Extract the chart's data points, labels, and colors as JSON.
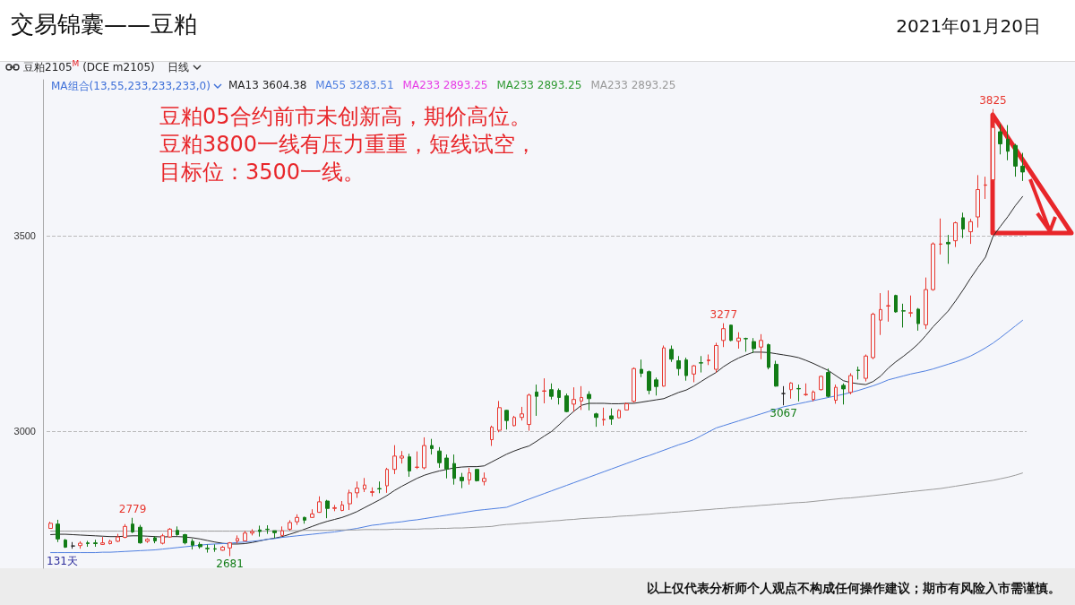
{
  "chart_data": {
    "type": "candlestick",
    "title": "交易锦囊——豆粕",
    "subtitle": "2021年01月20日",
    "categories": [
      null,
      null,
      null,
      null,
      null,
      null,
      null,
      null,
      null,
      null,
      null,
      null,
      null,
      null,
      null,
      null,
      null,
      null,
      null,
      null,
      null,
      null,
      null,
      null,
      null,
      null,
      null,
      null,
      null,
      null,
      null,
      null,
      null,
      null,
      null,
      null,
      null,
      null,
      null,
      null,
      null,
      null,
      null,
      null,
      null,
      null,
      null,
      null,
      null,
      null,
      null,
      null,
      null,
      null,
      null,
      null,
      null,
      null,
      null,
      null,
      null,
      null,
      null,
      null,
      null,
      null,
      null,
      null,
      null,
      null,
      null,
      null,
      null,
      null,
      null,
      null,
      null,
      null,
      null,
      null,
      null,
      null,
      null,
      null,
      null,
      null,
      null,
      null,
      null,
      null,
      null,
      null,
      null,
      null,
      null,
      null,
      null,
      null,
      null,
      null,
      null,
      null,
      null,
      null,
      null,
      null,
      null,
      null,
      null,
      null,
      null,
      null,
      null,
      null,
      null,
      null,
      null,
      null,
      null,
      null,
      null,
      null,
      null,
      null,
      null,
      null,
      null,
      null,
      null,
      null,
      null
    ],
    "ohlc": [
      [
        2752,
        2769,
        2751,
        2765
      ],
      [
        2763,
        2774,
        2717,
        2725
      ],
      [
        2722,
        2725,
        2702,
        2704
      ],
      [
        2707,
        2717,
        2700,
        2707
      ],
      [
        2708,
        2719,
        2700,
        2714
      ],
      [
        2715,
        2720,
        2705,
        2713
      ],
      [
        2715,
        2723,
        2705,
        2713
      ],
      [
        2711,
        2730,
        2710,
        2715
      ],
      [
        2713,
        2723,
        2711,
        2719
      ],
      [
        2719,
        2738,
        2717,
        2730
      ],
      [
        2729,
        2763,
        2727,
        2757
      ],
      [
        2763,
        2779,
        2740,
        2743
      ],
      [
        2755,
        2761,
        2713,
        2715
      ],
      [
        2719,
        2727,
        2715,
        2724
      ],
      [
        2728,
        2732,
        2714,
        2720
      ],
      [
        2714,
        2738,
        2711,
        2733
      ],
      [
        2730,
        2753,
        2728,
        2750
      ],
      [
        2747,
        2757,
        2733,
        2736
      ],
      [
        2736,
        2738,
        2711,
        2715
      ],
      [
        2719,
        2725,
        2698,
        2709
      ],
      [
        2711,
        2717,
        2700,
        2705
      ],
      [
        2701,
        2711,
        2690,
        2700
      ],
      [
        2700,
        2711,
        2692,
        2699
      ],
      [
        2696,
        2707,
        2695,
        2704
      ],
      [
        2702,
        2717,
        2681,
        2715
      ],
      [
        2720,
        2734,
        2713,
        2726
      ],
      [
        2720,
        2746,
        2719,
        2740
      ],
      [
        2740,
        2750,
        2734,
        2744
      ],
      [
        2748,
        2759,
        2731,
        2744
      ],
      [
        2750,
        2760,
        2738,
        2749
      ],
      [
        2746,
        2746,
        2727,
        2741
      ],
      [
        2734,
        2757,
        2731,
        2746
      ],
      [
        2750,
        2773,
        2746,
        2767
      ],
      [
        2769,
        2788,
        2761,
        2780
      ],
      [
        2780,
        2782,
        2764,
        2773
      ],
      [
        2780,
        2801,
        2779,
        2789
      ],
      [
        2793,
        2834,
        2792,
        2820
      ],
      [
        2822,
        2825,
        2778,
        2803
      ],
      [
        2803,
        2812,
        2796,
        2805
      ],
      [
        2798,
        2822,
        2796,
        2812
      ],
      [
        2815,
        2851,
        2799,
        2843
      ],
      [
        2843,
        2872,
        2830,
        2855
      ],
      [
        2853,
        2881,
        2845,
        2863
      ],
      [
        2844,
        2857,
        2834,
        2846
      ],
      [
        2854,
        2872,
        2842,
        2853
      ],
      [
        2861,
        2907,
        2843,
        2903
      ],
      [
        2903,
        2965,
        2891,
        2937
      ],
      [
        2932,
        2950,
        2918,
        2937
      ],
      [
        2935,
        2943,
        2884,
        2899
      ],
      [
        2908,
        2949,
        2904,
        2909
      ],
      [
        2907,
        2985,
        2903,
        2964
      ],
      [
        2964,
        2981,
        2941,
        2956
      ],
      [
        2950,
        2960,
        2907,
        2920
      ],
      [
        2932,
        2941,
        2880,
        2904
      ],
      [
        2918,
        2941,
        2864,
        2880
      ],
      [
        2883,
        2894,
        2855,
        2874
      ],
      [
        2876,
        2907,
        2864,
        2894
      ],
      [
        2903,
        2903,
        2872,
        2874
      ],
      [
        2872,
        2895,
        2862,
        2880
      ],
      [
        2979,
        3015,
        2963,
        3011
      ],
      [
        3003,
        3078,
        2998,
        3061
      ],
      [
        3054,
        3055,
        3005,
        3028
      ],
      [
        3015,
        3040,
        3013,
        3036
      ],
      [
        3036,
        3063,
        3028,
        3045
      ],
      [
        3018,
        3097,
        3002,
        3093
      ],
      [
        3101,
        3120,
        3040,
        3090
      ],
      [
        3103,
        3136,
        3072,
        3104
      ],
      [
        3107,
        3123,
        3082,
        3090
      ],
      [
        3105,
        3110,
        3069,
        3087
      ],
      [
        3091,
        3097,
        3049,
        3051
      ],
      [
        3070,
        3113,
        3051,
        3082
      ],
      [
        3078,
        3116,
        3055,
        3087
      ],
      [
        3095,
        3103,
        3054,
        3084
      ],
      [
        3045,
        3048,
        3012,
        3036
      ],
      [
        3030,
        3061,
        3015,
        3031
      ],
      [
        3040,
        3059,
        3017,
        3032
      ],
      [
        3035,
        3057,
        3034,
        3054
      ],
      [
        3055,
        3074,
        3054,
        3071
      ],
      [
        3077,
        3164,
        3074,
        3161
      ],
      [
        3159,
        3184,
        3139,
        3149
      ],
      [
        3153,
        3156,
        3095,
        3105
      ],
      [
        3132,
        3138,
        3092,
        3115
      ],
      [
        3116,
        3220,
        3115,
        3214
      ],
      [
        3210,
        3220,
        3178,
        3185
      ],
      [
        3181,
        3193,
        3143,
        3161
      ],
      [
        3183,
        3189,
        3130,
        3143
      ],
      [
        3147,
        3170,
        3126,
        3168
      ],
      [
        3176,
        3193,
        3151,
        3175
      ],
      [
        3181,
        3197,
        3170,
        3183
      ],
      [
        3159,
        3227,
        3151,
        3220
      ],
      [
        3233,
        3277,
        3216,
        3263
      ],
      [
        3272,
        3273,
        3231,
        3233
      ],
      [
        3231,
        3254,
        3212,
        3239
      ],
      [
        3238,
        3240,
        3204,
        3237
      ],
      [
        3230,
        3239,
        3201,
        3212
      ],
      [
        3216,
        3249,
        3185,
        3233
      ],
      [
        3222,
        3225,
        3159,
        3164
      ],
      [
        3172,
        3181,
        3115,
        3116
      ],
      [
        3097,
        3116,
        3067,
        3097
      ],
      [
        3107,
        3126,
        3084,
        3124
      ],
      [
        3110,
        3120,
        3077,
        3109
      ],
      [
        3094,
        3123,
        3091,
        3095
      ],
      [
        3082,
        3105,
        3077,
        3101
      ],
      [
        3107,
        3143,
        3105,
        3141
      ],
      [
        3151,
        3161,
        3087,
        3090
      ],
      [
        3080,
        3120,
        3071,
        3113
      ],
      [
        3118,
        3123,
        3069,
        3109
      ],
      [
        3100,
        3149,
        3095,
        3143
      ],
      [
        3157,
        3166,
        3133,
        3156
      ],
      [
        3136,
        3197,
        3128,
        3193
      ],
      [
        3189,
        3304,
        3185,
        3300
      ],
      [
        3285,
        3354,
        3247,
        3312
      ],
      [
        3321,
        3361,
        3281,
        3322
      ],
      [
        3348,
        3350,
        3304,
        3306
      ],
      [
        3309,
        3327,
        3266,
        3308
      ],
      [
        3303,
        3348,
        3293,
        3304
      ],
      [
        3313,
        3316,
        3258,
        3276
      ],
      [
        3273,
        3394,
        3262,
        3363
      ],
      [
        3363,
        3484,
        3360,
        3480
      ],
      [
        3479,
        3545,
        3453,
        3480
      ],
      [
        3484,
        3503,
        3429,
        3480
      ],
      [
        3488,
        3537,
        3472,
        3534
      ],
      [
        3547,
        3560,
        3495,
        3518
      ],
      [
        3511,
        3544,
        3480,
        3537
      ],
      [
        3549,
        3656,
        3522,
        3619
      ],
      [
        3630,
        3652,
        3595,
        3631
      ],
      [
        3644,
        3825,
        3640,
        3778
      ],
      [
        3767,
        3786,
        3709,
        3736
      ],
      [
        3748,
        3784,
        3694,
        3717
      ],
      [
        3732,
        3736,
        3652,
        3679
      ],
      [
        3679,
        3713,
        3641,
        3664
      ]
    ],
    "colors": [
      "#e8372f",
      "#127c16",
      "#127c16",
      "#222222",
      "#e8372f",
      "#127c16",
      "#127c16",
      "#e8372f",
      "#e8372f",
      "#e8372f",
      "#e8372f",
      "#127c16",
      "#127c16",
      "#e8372f",
      "#127c16",
      "#e8372f",
      "#e8372f",
      "#127c16",
      "#127c16",
      "#127c16",
      "#127c16",
      "#127c16",
      "#127c16",
      "#e8372f",
      "#e8372f",
      "#e8372f",
      "#e8372f",
      "#e8372f",
      "#127c16",
      "#127c16",
      "#127c16",
      "#e8372f",
      "#e8372f",
      "#e8372f",
      "#127c16",
      "#e8372f",
      "#e8372f",
      "#127c16",
      "#e8372f",
      "#e8372f",
      "#e8372f",
      "#e8372f",
      "#e8372f",
      "#e8372f",
      "#127c16",
      "#e8372f",
      "#e8372f",
      "#e8372f",
      "#127c16",
      "#e8372f",
      "#e8372f",
      "#127c16",
      "#127c16",
      "#127c16",
      "#127c16",
      "#127c16",
      "#e8372f",
      "#127c16",
      "#e8372f",
      "#e8372f",
      "#e8372f",
      "#127c16",
      "#e8372f",
      "#e8372f",
      "#e8372f",
      "#127c16",
      "#e8372f",
      "#127c16",
      "#127c16",
      "#127c16",
      "#e8372f",
      "#e8372f",
      "#127c16",
      "#127c16",
      "#e8372f",
      "#127c16",
      "#e8372f",
      "#e8372f",
      "#e8372f",
      "#127c16",
      "#127c16",
      "#127c16",
      "#e8372f",
      "#127c16",
      "#127c16",
      "#127c16",
      "#e8372f",
      "#127c16",
      "#e8372f",
      "#e8372f",
      "#e8372f",
      "#127c16",
      "#e8372f",
      "#127c16",
      "#127c16",
      "#e8372f",
      "#127c16",
      "#127c16",
      "#222222",
      "#e8372f",
      "#127c16",
      "#e8372f",
      "#e8372f",
      "#e8372f",
      "#127c16",
      "#e8372f",
      "#127c16",
      "#e8372f",
      "#127c16",
      "#e8372f",
      "#e8372f",
      "#e8372f",
      "#e8372f",
      "#127c16",
      "#127c16",
      "#e8372f",
      "#127c16",
      "#e8372f",
      "#e8372f",
      "#e8372f",
      "#127c16",
      "#e8372f",
      "#127c16",
      "#e8372f",
      "#e8372f",
      "#e8372f",
      "#e8372f",
      "#127c16",
      "#127c16",
      "#127c16",
      "#127c16"
    ],
    "series": [
      {
        "type": "line",
        "name": "MA13 3604.38",
        "color": "#262626",
        "values": [
          2736,
          2737,
          2737,
          2736,
          2735,
          2734,
          2733,
          2732,
          2731,
          2731,
          2732,
          2733,
          2733,
          2732,
          2731,
          2730,
          2731,
          2731,
          2730,
          2728,
          2725,
          2721,
          2717,
          2714,
          2712,
          2712,
          2713,
          2716,
          2720,
          2724,
          2727,
          2731,
          2737,
          2743,
          2750,
          2757,
          2764,
          2770,
          2775,
          2780,
          2787,
          2795,
          2805,
          2815,
          2825,
          2836,
          2849,
          2860,
          2870,
          2880,
          2888,
          2894,
          2899,
          2903,
          2907,
          2909,
          2910,
          2910,
          2912,
          2922,
          2932,
          2942,
          2950,
          2957,
          2963,
          2975,
          2988,
          3000,
          3017,
          3035,
          3052,
          3067,
          3072,
          3072,
          3072,
          3071,
          3071,
          3072,
          3072,
          3075,
          3078,
          3081,
          3084,
          3092,
          3100,
          3106,
          3116,
          3128,
          3140,
          3151,
          3166,
          3178,
          3188,
          3196,
          3203,
          3203,
          3202,
          3199,
          3196,
          3193,
          3189,
          3182,
          3174,
          3165,
          3156,
          3143,
          3130,
          3125,
          3122,
          3120,
          3128,
          3142,
          3162,
          3178,
          3192,
          3207,
          3224,
          3245,
          3268,
          3288,
          3308,
          3334,
          3362,
          3392,
          3420,
          3446,
          3499,
          3525,
          3550,
          3578,
          3602
        ]
      },
      {
        "type": "line",
        "name": "MA55 3283.51",
        "color": "#4f7fe0",
        "values": [
          2690,
          2690,
          2690,
          2690,
          2690,
          2690,
          2690,
          2691,
          2691,
          2692,
          2693,
          2694,
          2695,
          2696,
          2697,
          2699,
          2701,
          2703,
          2705,
          2707,
          2709,
          2711,
          2712,
          2713,
          2714,
          2716,
          2717,
          2719,
          2721,
          2724,
          2726,
          2729,
          2731,
          2733,
          2735,
          2737,
          2739,
          2741,
          2743,
          2746,
          2749,
          2752,
          2756,
          2760,
          2762,
          2765,
          2767,
          2769,
          2772,
          2774,
          2777,
          2780,
          2783,
          2786,
          2789,
          2792,
          2795,
          2798,
          2800,
          2802,
          2804,
          2806,
          2813,
          2820,
          2827,
          2834,
          2841,
          2848,
          2855,
          2862,
          2869,
          2876,
          2883,
          2890,
          2897,
          2904,
          2911,
          2918,
          2925,
          2932,
          2938,
          2945,
          2952,
          2959,
          2966,
          2972,
          2979,
          2989,
          2999,
          3009,
          3015,
          3021,
          3027,
          3033,
          3039,
          3045,
          3051,
          3057,
          3063,
          3067,
          3071,
          3075,
          3079,
          3083,
          3087,
          3091,
          3095,
          3100,
          3105,
          3111,
          3117,
          3124,
          3132,
          3137,
          3142,
          3147,
          3151,
          3155,
          3160,
          3166,
          3172,
          3178,
          3185,
          3193,
          3203,
          3214,
          3226,
          3240,
          3255,
          3270,
          3285
        ]
      },
      {
        "type": "line",
        "name": "MA233 2893.25",
        "color": "#e73de6",
        "values": [
          null,
          null,
          null,
          null,
          null,
          null,
          null,
          null,
          null,
          null,
          null,
          null,
          null,
          null,
          null,
          null,
          null,
          null,
          null,
          null,
          null,
          null,
          null,
          null,
          null,
          null,
          null,
          null,
          null,
          null,
          null,
          null,
          null,
          null,
          null,
          null,
          null,
          null,
          null,
          null,
          null,
          null,
          null,
          null,
          null,
          null,
          null,
          null,
          null,
          null,
          null,
          null,
          null,
          null,
          null,
          null,
          null,
          null,
          null,
          null,
          null,
          null,
          null,
          null,
          null,
          null,
          null,
          null,
          null,
          null,
          null,
          null,
          null,
          null,
          null,
          null,
          null,
          null,
          null,
          null,
          null,
          null,
          null,
          null,
          null,
          null,
          null,
          null,
          null,
          null,
          null,
          null,
          null,
          null,
          null,
          null,
          null,
          null,
          null,
          null,
          null,
          null,
          null,
          null,
          null,
          null,
          null,
          null,
          null,
          null,
          null,
          null,
          null,
          null,
          null,
          null,
          null,
          null,
          null,
          null,
          null,
          null,
          null,
          null,
          null,
          null,
          null,
          null,
          null,
          null,
          null
        ]
      },
      {
        "type": "line",
        "name": "MA233 2893.25",
        "color": "#2f9a33",
        "values": [
          null,
          null,
          null,
          null,
          null,
          null,
          null,
          null,
          null,
          null,
          null,
          null,
          null,
          null,
          null,
          null,
          null,
          null,
          null,
          null,
          null,
          null,
          null,
          null,
          null,
          null,
          null,
          null,
          null,
          null,
          null,
          null,
          null,
          null,
          null,
          null,
          null,
          null,
          null,
          null,
          null,
          null,
          null,
          null,
          null,
          null,
          null,
          null,
          null,
          null,
          null,
          null,
          null,
          null,
          null,
          null,
          null,
          null,
          null,
          null,
          null,
          null,
          null,
          null,
          null,
          null,
          null,
          null,
          null,
          null,
          null,
          null,
          null,
          null,
          null,
          null,
          null,
          null,
          null,
          null,
          null,
          null,
          null,
          null,
          null,
          null,
          null,
          null,
          null,
          null,
          null,
          null,
          null,
          null,
          null,
          null,
          null,
          null,
          null,
          null,
          null,
          null,
          null,
          null,
          null,
          null,
          null,
          null,
          null,
          null,
          null,
          null,
          null,
          null,
          null,
          null,
          null,
          null,
          null,
          null,
          null,
          null,
          null,
          null,
          null,
          null,
          null,
          null,
          null,
          null,
          null
        ]
      },
      {
        "type": "line",
        "name": "MA233 2893.25",
        "color": "#9a9a9a",
        "values": [
          2745,
          2745,
          2745,
          2745,
          2745,
          2745,
          2745,
          2745,
          2745,
          2745,
          2745,
          2745,
          2745,
          2745,
          2745,
          2745,
          2745,
          2745,
          2745,
          2745,
          2745,
          2745,
          2745,
          2745,
          2745,
          2745,
          2745,
          2745,
          2745,
          2745,
          2746,
          2746,
          2746,
          2746,
          2747,
          2747,
          2747,
          2747,
          2748,
          2748,
          2748,
          2748,
          2749,
          2749,
          2749,
          2749,
          2750,
          2750,
          2750,
          2750,
          2751,
          2751,
          2752,
          2752,
          2753,
          2753,
          2754,
          2755,
          2756,
          2757,
          2760,
          2762,
          2763,
          2765,
          2766,
          2768,
          2769,
          2771,
          2772,
          2774,
          2775,
          2777,
          2778,
          2779,
          2780,
          2781,
          2783,
          2784,
          2785,
          2787,
          2788,
          2790,
          2791,
          2793,
          2794,
          2796,
          2797,
          2799,
          2800,
          2802,
          2803,
          2805,
          2806,
          2808,
          2809,
          2811,
          2812,
          2814,
          2815,
          2817,
          2818,
          2819,
          2821,
          2823,
          2825,
          2827,
          2829,
          2830,
          2832,
          2834,
          2836,
          2838,
          2840,
          2842,
          2844,
          2846,
          2848,
          2850,
          2852,
          2854,
          2857,
          2860,
          2863,
          2866,
          2869,
          2872,
          2875,
          2879,
          2883,
          2888,
          2894
        ]
      }
    ],
    "ylim": [
      2650,
      3900
    ],
    "yticks": [
      {
        "value": 3000,
        "label": "3000"
      },
      {
        "value": 3500,
        "label": "3500"
      }
    ],
    "grid": "y",
    "legend": "top left",
    "marker": "none",
    "tick_labels": "y",
    "annotations": [
      "豆粕2105$^{M}$ (DCE m2105)",
      "日线",
      "MA组合(13,55,233,233,233,0)",
      "豆粕05合约前市未创新高，期价高位。",
      "豆粕3800一线有压力重重，短线试空，",
      "目标位：3500一线。",
      "131天",
      "以上仅代表分析师个人观点不构成任何操作建议；期市有风险入市需谨慎。",
      {
        "text": "3825",
        "y": 3825
      },
      {
        "text": "3277",
        "y": 3277
      },
      {
        "text": "2779",
        "y": 2779
      },
      {
        "text": "3067",
        "y": 3067
      },
      {
        "text": "2681",
        "y": 2681
      }
    ]
  }
}
